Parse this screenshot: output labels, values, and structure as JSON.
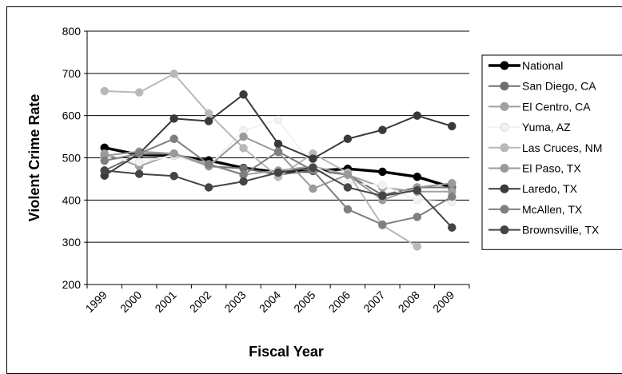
{
  "chart_data": {
    "type": "line",
    "title": "",
    "xlabel": "Fiscal Year",
    "ylabel": "Violent Crime Rate",
    "categories": [
      "1999",
      "2000",
      "2001",
      "2002",
      "2003",
      "2004",
      "2005",
      "2006",
      "2007",
      "2008",
      "2009"
    ],
    "ylim": [
      200,
      800
    ],
    "yticks": [
      200,
      300,
      400,
      500,
      600,
      700,
      800
    ],
    "grid": "horizontal",
    "legend_position": "right",
    "series": [
      {
        "name": "National",
        "color": "#000000",
        "values": [
          524,
          507,
          505,
          494,
          476,
          466,
          469,
          474,
          467,
          455,
          430
        ]
      },
      {
        "name": "San Diego, CA",
        "color": "#6e6e6e",
        "values": [
          470,
          509,
          510,
          480,
          475,
          460,
          470,
          460,
          412,
          430,
          430
        ]
      },
      {
        "name": "El Centro, CA",
        "color": "#a0a0a0",
        "values": [
          510,
          480,
          510,
          485,
          460,
          470,
          480,
          460,
          430,
          420,
          420
        ]
      },
      {
        "name": "Yuma, AZ",
        "color": "#f2f2f2",
        "values": [
          500,
          490,
          505,
          480,
          565,
          590,
          480,
          440,
          435,
          400,
          395
        ]
      },
      {
        "name": "Las Cruces, NM",
        "color": "#b8b8b8",
        "values": [
          658,
          655,
          699,
          605,
          523,
          455,
          510,
          465,
          340,
          290,
          null
        ]
      },
      {
        "name": "El Paso, TX",
        "color": "#9a9a9a",
        "values": [
          505,
          515,
          510,
          480,
          550,
          513,
          427,
          460,
          400,
          430,
          440
        ]
      },
      {
        "name": "Laredo, TX",
        "color": "#3a3a3a",
        "values": [
          458,
          510,
          593,
          587,
          650,
          533,
          498,
          545,
          566,
          600,
          575
        ]
      },
      {
        "name": "McAllen, TX",
        "color": "#7f7f7f",
        "values": [
          493,
          510,
          545,
          485,
          460,
          515,
          470,
          378,
          342,
          360,
          408
        ]
      },
      {
        "name": "Brownsville, TX",
        "color": "#454545",
        "values": [
          470,
          462,
          457,
          430,
          444,
          465,
          477,
          430,
          410,
          423,
          335
        ]
      }
    ]
  }
}
